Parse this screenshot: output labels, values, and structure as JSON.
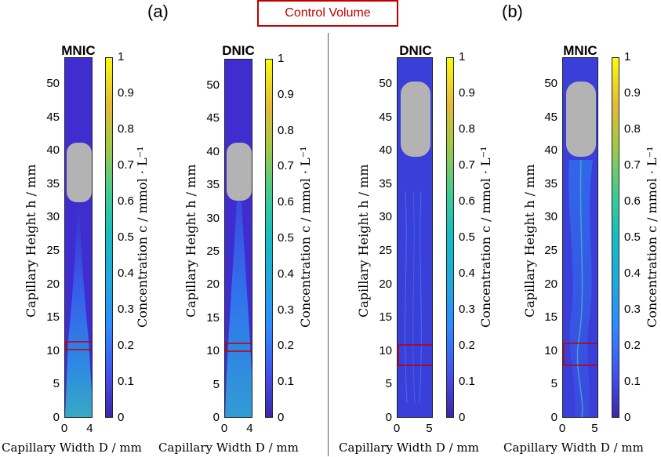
{
  "panel_labels": {
    "a": "(a)",
    "b": "(b)"
  },
  "legend": {
    "control_volume": "Control Volume"
  },
  "colors": {
    "roi": "#c00000",
    "bubble": "#b3b3b3",
    "background_field": "#3f2dcf"
  },
  "axes": {
    "ylabel": "Capillary Height h / mm",
    "xlabel": "Capillary Width D / mm",
    "clabel": "Concentration c / mmol · L⁻¹",
    "yticks": [
      "0",
      "5",
      "10",
      "15",
      "20",
      "25",
      "30",
      "35",
      "40",
      "45",
      "50"
    ],
    "cticks": [
      "0",
      "0.1",
      "0.2",
      "0.3",
      "0.4",
      "0.5",
      "0.6",
      "0.7",
      "0.8",
      "0.9",
      "1"
    ]
  },
  "plots": [
    {
      "id": "a1",
      "title": "MNIC",
      "xticks": [
        "0",
        "4"
      ]
    },
    {
      "id": "a2",
      "title": "DNIC",
      "xticks": [
        "0",
        "4"
      ]
    },
    {
      "id": "b1",
      "title": "DNIC",
      "xticks": [
        "0",
        "5"
      ]
    },
    {
      "id": "b2",
      "title": "MNIC",
      "xticks": [
        "0",
        "5"
      ]
    }
  ]
}
